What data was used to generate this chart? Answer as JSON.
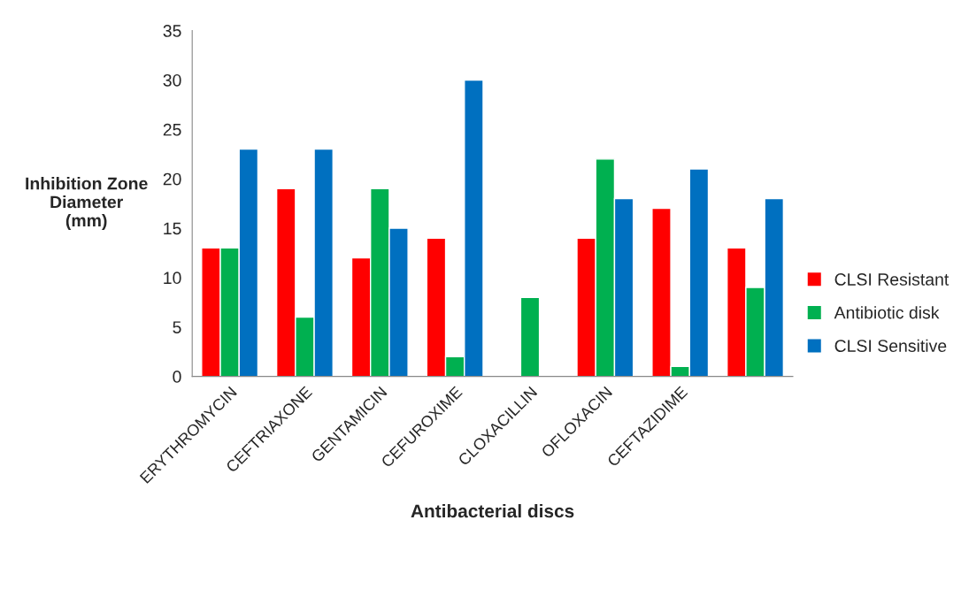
{
  "chart_data": {
    "type": "bar",
    "xlabel": "Antibacterial discs",
    "ylabel": "Inhibition Zone\nDiameter\n(mm)",
    "categories": [
      "ERYTHROMYCIN",
      "CEFTRIAXONE",
      "GENTAMICIN",
      "CEFUROXIME",
      "CLOXACILLIN",
      "OFLOXACIN",
      "CEFTAZIDIME",
      null
    ],
    "series": [
      {
        "name": "CLSI Resistant",
        "color": "#ff0000",
        "values": [
          13,
          19,
          12,
          14,
          null,
          14,
          17,
          13
        ]
      },
      {
        "name": "Antibiotic disk",
        "color": "#00b050",
        "values": [
          13,
          6,
          19,
          2,
          8,
          22,
          1,
          9
        ]
      },
      {
        "name": "CLSI Sensitive",
        "color": "#0070c0",
        "values": [
          23,
          23,
          15,
          30,
          null,
          18,
          21,
          18
        ]
      }
    ],
    "ylim": [
      0,
      35
    ],
    "yticks": [
      0,
      5,
      10,
      15,
      20,
      25,
      30,
      35
    ],
    "grid": false,
    "legend": "right"
  }
}
